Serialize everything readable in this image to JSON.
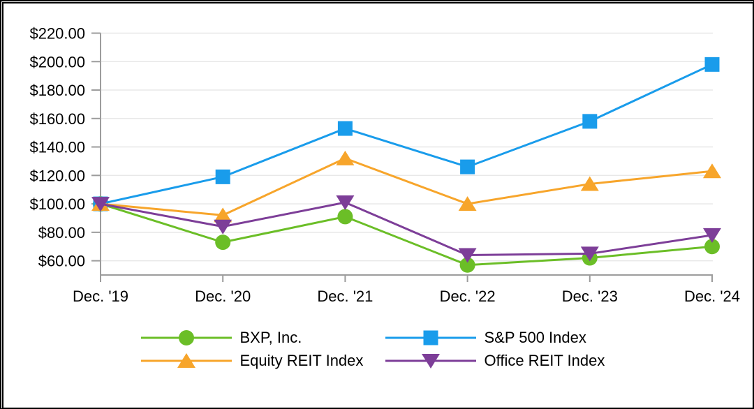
{
  "chart_data": {
    "type": "line",
    "title": "",
    "xlabel": "",
    "ylabel": "",
    "categories": [
      "Dec. '19",
      "Dec. '20",
      "Dec. '21",
      "Dec. '22",
      "Dec. '23",
      "Dec. '24"
    ],
    "series": [
      {
        "name": "BXP, Inc.",
        "color": "#6bbe27",
        "marker": "circle",
        "values": [
          100,
          73,
          91,
          57,
          62,
          70
        ]
      },
      {
        "name": "S&P 500 Index",
        "color": "#199ceb",
        "marker": "square",
        "values": [
          100,
          119,
          153,
          126,
          158,
          198
        ]
      },
      {
        "name": "Equity REIT Index",
        "color": "#f7a52b",
        "marker": "triangle-up",
        "values": [
          100,
          92,
          132,
          100,
          114,
          123
        ]
      },
      {
        "name": "Office REIT Index",
        "color": "#7d3e98",
        "marker": "triangle-down",
        "values": [
          100,
          84,
          101,
          64,
          65,
          78
        ]
      }
    ],
    "ylim": [
      50,
      220
    ],
    "y_ticks": [
      60,
      80,
      100,
      120,
      140,
      160,
      180,
      200,
      220
    ],
    "y_tick_labels": [
      "$60.00",
      "$80.00",
      "$100.00",
      "$120.00",
      "$140.00",
      "$160.00",
      "$180.00",
      "$200.00",
      "$220.00"
    ],
    "grid": true,
    "legend_position": "bottom",
    "legend_columns": 2,
    "colors": {
      "gridline": "#e8e8e8",
      "axis": "#9c9c9c",
      "text": "#000000"
    }
  }
}
